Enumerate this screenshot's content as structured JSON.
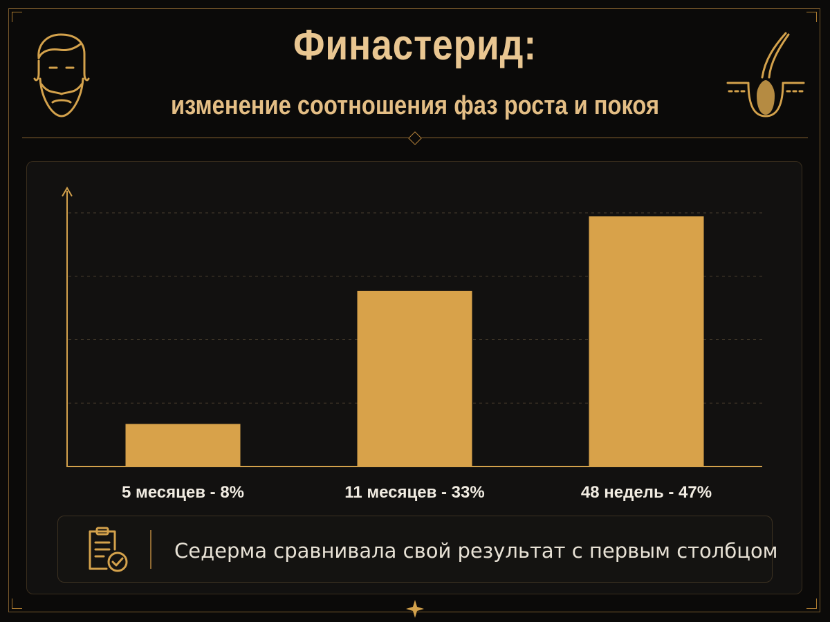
{
  "header": {
    "title": "Финастерид:",
    "subtitle": "изменение соотношения фаз роста и покоя"
  },
  "icons": {
    "left": "bearded-man-icon",
    "right": "hair-follicle-icon",
    "note": "clipboard-check-icon",
    "bottom": "sparkle-star-icon"
  },
  "colors": {
    "accent": "#d8a24a",
    "gold_text": "#e9c691",
    "background": "#0b0a09"
  },
  "chart_data": {
    "type": "bar",
    "categories": [
      "5 месяцев - 8%",
      "11 месяцев - 33%",
      "48 недель - 47%"
    ],
    "values": [
      8,
      33,
      47
    ],
    "title": "",
    "xlabel": "",
    "ylabel": "",
    "ylim": [
      0,
      50
    ],
    "grid": true
  },
  "note": {
    "text": "Седерма сравнивала свой результат с первым столбцом"
  }
}
